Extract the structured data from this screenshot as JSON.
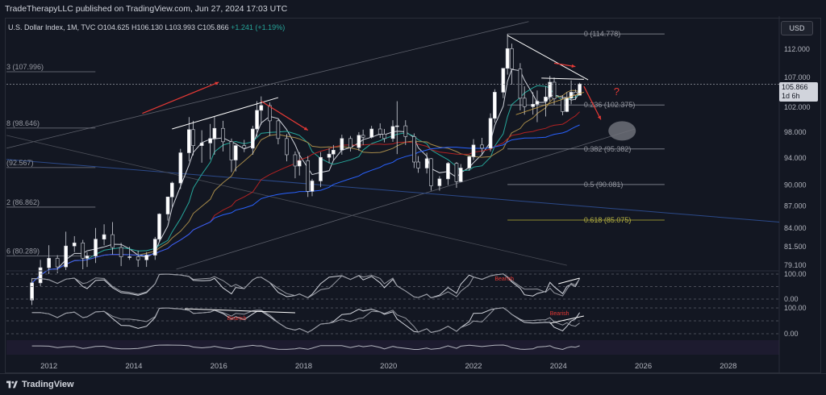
{
  "header": {
    "published": "TradeTherapyLLC published on TradingView.com, Jun 27, 2024 17:03 UTC",
    "symbol": "U.S. Dollar Index, 1M, TVC",
    "open": "O104.625",
    "high": "H106.130",
    "low": "L103.993",
    "close": "C105.866",
    "change": "+1.241 (+1.19%)"
  },
  "toolbar": {
    "currency": "USD"
  },
  "last_price": {
    "value": "105.866",
    "countdown": "1d 6h"
  },
  "footer": {
    "brand": "TradingView"
  },
  "colors": {
    "background": "#131722",
    "bull": "#ffffff",
    "bear": "#ffffff",
    "arrow": "#e53935",
    "fib_gold": "#8c8a2e",
    "ma_blue": "#2962ff",
    "ma_red": "#b22222",
    "ma_teal": "#26a69a",
    "ma_tan": "#a68a4a"
  },
  "chart_data": {
    "type": "candlestick",
    "title": "U.S. Dollar Index, 1M, TVC",
    "x_ticks": [
      "2012",
      "2014",
      "2016",
      "2018",
      "2020",
      "2022",
      "2024",
      "2026",
      "2028"
    ],
    "x_range": [
      2011.0,
      2029.2
    ],
    "y_ticks": [
      "112.000",
      "107.000",
      "102.000",
      "98.000",
      "94.000",
      "90.000",
      "87.000",
      "84.000",
      "81.500",
      "79.100"
    ],
    "y_range_approx": [
      78.5,
      117.5
    ],
    "y_scale": "log",
    "candles": [
      [
        2011.6,
        74.8,
        77.5,
        74.2,
        76.9
      ],
      [
        2011.8,
        76.9,
        79.8,
        76.5,
        78.8
      ],
      [
        2012.0,
        78.8,
        81.7,
        78.0,
        80.0
      ],
      [
        2012.2,
        80.0,
        80.4,
        78.1,
        78.9
      ],
      [
        2012.4,
        78.9,
        83.5,
        78.5,
        81.6
      ],
      [
        2012.6,
        81.6,
        82.9,
        80.8,
        82.0
      ],
      [
        2012.8,
        82.0,
        82.4,
        78.6,
        80.0
      ],
      [
        2012.9,
        80.0,
        80.8,
        78.9,
        80.3
      ],
      [
        2013.1,
        80.3,
        84.0,
        79.4,
        82.5
      ],
      [
        2013.3,
        82.5,
        84.5,
        81.7,
        83.1
      ],
      [
        2013.5,
        83.1,
        84.8,
        80.5,
        81.4
      ],
      [
        2013.7,
        81.4,
        82.0,
        79.0,
        80.2
      ],
      [
        2013.9,
        80.2,
        81.5,
        79.8,
        80.2
      ],
      [
        2014.1,
        80.2,
        81.0,
        78.9,
        79.8
      ],
      [
        2014.3,
        79.8,
        80.8,
        78.9,
        80.4
      ],
      [
        2014.5,
        80.4,
        82.8,
        79.8,
        82.5
      ],
      [
        2014.6,
        82.5,
        86.0,
        82.2,
        85.9
      ],
      [
        2014.8,
        85.9,
        88.3,
        85.0,
        88.3
      ],
      [
        2014.9,
        88.3,
        90.5,
        86.9,
        90.3
      ],
      [
        2015.1,
        90.3,
        95.4,
        89.4,
        94.8
      ],
      [
        2015.3,
        94.8,
        100.4,
        93.5,
        98.4
      ],
      [
        2015.4,
        98.4,
        99.8,
        94.4,
        95.9
      ],
      [
        2015.6,
        95.9,
        98.3,
        93.3,
        96.3
      ],
      [
        2015.8,
        96.3,
        99.3,
        93.8,
        97.0
      ],
      [
        2015.9,
        97.0,
        100.5,
        94.5,
        98.6
      ],
      [
        2016.1,
        98.6,
        99.8,
        95.0,
        96.5
      ],
      [
        2016.3,
        96.5,
        97.0,
        91.9,
        93.7
      ],
      [
        2016.4,
        93.7,
        96.0,
        92.0,
        95.9
      ],
      [
        2016.6,
        95.9,
        96.8,
        94.9,
        95.5
      ],
      [
        2016.8,
        95.5,
        99.0,
        94.5,
        98.5
      ],
      [
        2016.9,
        98.5,
        103.0,
        97.3,
        101.5
      ],
      [
        2017.0,
        101.5,
        103.8,
        99.2,
        102.3
      ],
      [
        2017.2,
        102.3,
        102.8,
        97.4,
        99.8
      ],
      [
        2017.4,
        99.8,
        100.0,
        96.1,
        97.0
      ],
      [
        2017.6,
        97.0,
        97.7,
        93.5,
        94.5
      ],
      [
        2017.8,
        94.5,
        95.0,
        91.0,
        92.8
      ],
      [
        2017.9,
        92.8,
        94.9,
        91.4,
        93.6
      ],
      [
        2018.1,
        93.6,
        94.3,
        88.3,
        89.1
      ],
      [
        2018.2,
        89.1,
        90.9,
        88.4,
        90.6
      ],
      [
        2018.4,
        90.6,
        94.9,
        89.7,
        94.1
      ],
      [
        2018.6,
        94.1,
        95.5,
        93.2,
        94.6
      ],
      [
        2018.7,
        94.6,
        96.0,
        93.7,
        95.2
      ],
      [
        2018.9,
        95.2,
        97.6,
        94.5,
        97.0
      ],
      [
        2019.1,
        97.0,
        97.4,
        95.0,
        95.6
      ],
      [
        2019.3,
        95.6,
        98.0,
        95.1,
        97.5
      ],
      [
        2019.4,
        97.5,
        98.4,
        96.0,
        97.2
      ],
      [
        2019.6,
        97.2,
        99.0,
        97.0,
        98.5
      ],
      [
        2019.8,
        98.5,
        99.4,
        97.1,
        97.7
      ],
      [
        2019.9,
        97.7,
        98.5,
        96.4,
        97.0
      ],
      [
        2020.1,
        97.0,
        99.9,
        96.5,
        98.9
      ],
      [
        2020.2,
        98.9,
        103.0,
        94.6,
        99.0
      ],
      [
        2020.4,
        99.0,
        99.9,
        96.0,
        97.3
      ],
      [
        2020.6,
        97.3,
        97.8,
        92.5,
        93.4
      ],
      [
        2020.7,
        93.4,
        94.3,
        91.8,
        92.5
      ],
      [
        2020.9,
        92.5,
        94.8,
        91.7,
        93.9
      ],
      [
        2021.0,
        93.9,
        94.0,
        89.2,
        89.9
      ],
      [
        2021.2,
        89.9,
        91.3,
        89.2,
        90.9
      ],
      [
        2021.4,
        90.9,
        93.4,
        90.0,
        93.2
      ],
      [
        2021.6,
        93.2,
        93.4,
        89.6,
        90.5
      ],
      [
        2021.7,
        90.5,
        93.1,
        90.4,
        92.5
      ],
      [
        2021.9,
        92.5,
        94.4,
        92.1,
        94.2
      ],
      [
        2022.0,
        94.2,
        96.9,
        93.7,
        96.0
      ],
      [
        2022.2,
        96.0,
        97.1,
        94.4,
        95.5
      ],
      [
        2022.4,
        95.5,
        101.0,
        95.0,
        100.2
      ],
      [
        2022.5,
        100.2,
        105.0,
        99.5,
        104.5
      ],
      [
        2022.7,
        104.5,
        108.5,
        103.5,
        108.6
      ],
      [
        2022.8,
        108.6,
        114.8,
        107.5,
        112.1
      ],
      [
        2022.9,
        112.1,
        113.0,
        105.8,
        108.5
      ],
      [
        2023.1,
        108.5,
        109.5,
        101.5,
        103.5
      ],
      [
        2023.2,
        103.5,
        105.5,
        100.8,
        102.1
      ],
      [
        2023.4,
        102.1,
        104.5,
        100.8,
        102.5
      ],
      [
        2023.5,
        102.5,
        104.8,
        99.6,
        103.0
      ],
      [
        2023.7,
        103.0,
        105.5,
        100.5,
        103.7
      ],
      [
        2023.8,
        103.7,
        107.3,
        103.0,
        106.2
      ],
      [
        2023.9,
        106.2,
        107.0,
        102.4,
        103.4
      ],
      [
        2024.1,
        103.4,
        104.0,
        100.7,
        101.3
      ],
      [
        2024.2,
        101.3,
        104.5,
        101.2,
        103.5
      ],
      [
        2024.3,
        103.5,
        106.5,
        102.5,
        104.5
      ],
      [
        2024.4,
        104.5,
        105.0,
        103.2,
        104.0
      ],
      [
        2024.5,
        104.0,
        106.1,
        104.0,
        105.9
      ]
    ],
    "fib_levels": [
      {
        "label": "0 (114.778)",
        "value": 114.778
      },
      {
        "label": "0.236 (102.375)",
        "value": 102.375
      },
      {
        "label": "0.382 (95.382)",
        "value": 95.382
      },
      {
        "label": "0.5 (90.081)",
        "value": 90.081
      },
      {
        "label": "0.618 (85.075)",
        "value": 85.075
      }
    ],
    "left_fib_levels": [
      {
        "label": "3 (107.996)",
        "value": 107.996
      },
      {
        "label": "8 (98.646)",
        "value": 98.646
      },
      {
        "label": "(92.567)",
        "value": 92.567
      },
      {
        "label": "2 (86.862)",
        "value": 86.862
      },
      {
        "label": "6 (80.289)",
        "value": 80.289
      }
    ],
    "annotations": [
      "?",
      "Bearish",
      "Bearish",
      "Bearish"
    ],
    "oscillator1_ticks": [
      "100.00",
      "0.00"
    ],
    "oscillator2_ticks": [
      "100.00",
      "0.00"
    ]
  }
}
